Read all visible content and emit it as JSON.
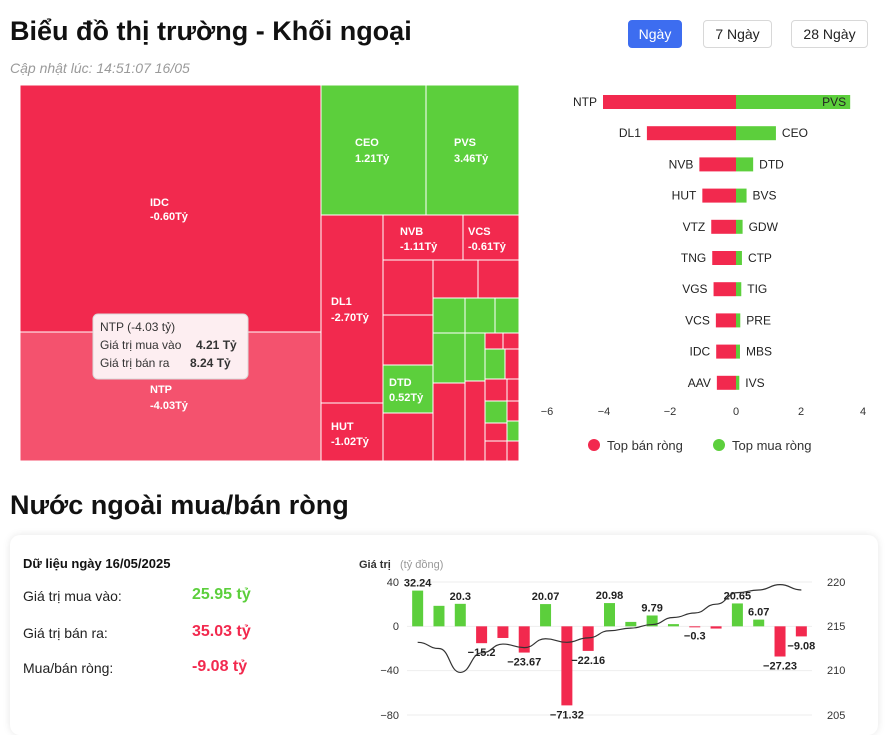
{
  "header": {
    "title": "Biểu đồ thị trường - Khối ngoại",
    "updated": "Cập nhật lúc: 14:51:07 16/05",
    "timeframes": [
      {
        "label": "Ngày",
        "active": true
      },
      {
        "label": "7 Ngày",
        "active": false
      },
      {
        "label": "28 Ngày",
        "active": false
      }
    ]
  },
  "colors": {
    "sell": "#f2294e",
    "buy": "#5ccf3c",
    "sell_light": "#f4526e",
    "accent": "#3d6df0"
  },
  "treemap": {
    "labeled_tiles": [
      {
        "ticker": "IDC",
        "value": "-0.60Tỷ",
        "side": "sell"
      },
      {
        "ticker": "NTP",
        "value": "-4.03Tỷ",
        "side": "sell",
        "highlight": true
      },
      {
        "ticker": "CEO",
        "value": "1.21Tỷ",
        "side": "buy"
      },
      {
        "ticker": "PVS",
        "value": "3.46Tỷ",
        "side": "buy"
      },
      {
        "ticker": "NVB",
        "value": "-1.11Tỷ",
        "side": "sell"
      },
      {
        "ticker": "VCS",
        "value": "-0.61Tỷ",
        "side": "sell"
      },
      {
        "ticker": "DL1",
        "value": "-2.70Tỷ",
        "side": "sell"
      },
      {
        "ticker": "DTD",
        "value": "0.52Tỷ",
        "side": "buy"
      },
      {
        "ticker": "HUT",
        "value": "-1.02Tỷ",
        "side": "sell"
      }
    ],
    "tooltip": {
      "title": "NTP (-4.03 tỷ)",
      "buy_label": "Giá trị mua vào",
      "buy_value": "4.21 Tỷ",
      "sell_label": "Giá trị bán ra",
      "sell_value": "8.24 Tỷ"
    }
  },
  "chart_data": [
    {
      "type": "bar",
      "orientation": "horizontal",
      "xlim": [
        -6,
        4
      ],
      "x_ticks": [
        "−6",
        "−4",
        "−2",
        "0",
        "2",
        "4"
      ],
      "legend_position": "bottom",
      "series": [
        {
          "name": "Top bán ròng",
          "categories": [
            "NTP",
            "DL1",
            "NVB",
            "HUT",
            "VTZ",
            "TNG",
            "VGS",
            "VCS",
            "IDC",
            "AAV"
          ],
          "values": [
            -4.03,
            -2.7,
            -1.11,
            -1.02,
            -0.75,
            -0.72,
            -0.68,
            -0.61,
            -0.6,
            -0.58
          ]
        },
        {
          "name": "Top mua ròng",
          "categories": [
            "PVS",
            "CEO",
            "DTD",
            "BVS",
            "GDW",
            "CTP",
            "TIG",
            "PRE",
            "MBS",
            "IVS"
          ],
          "values": [
            3.46,
            1.21,
            0.52,
            0.32,
            0.2,
            0.18,
            0.16,
            0.13,
            0.12,
            0.1
          ]
        }
      ]
    },
    {
      "type": "bar",
      "title": "Giá trị",
      "unit": "(tỷ đồng)",
      "ylim": [
        -80,
        40
      ],
      "y_ticks": [
        "40",
        "0",
        "−40",
        "−80"
      ],
      "y2lim": [
        205,
        220
      ],
      "y2_ticks": [
        "220",
        "215",
        "210",
        "205"
      ],
      "values": [
        32.24,
        18.5,
        20.3,
        -15.2,
        -10.5,
        -23.67,
        20.07,
        -71.32,
        -22.16,
        20.98,
        4.0,
        9.79,
        2.0,
        -0.3,
        -2.0,
        20.65,
        6.07,
        -27.23,
        -9.08
      ],
      "labels": [
        "32.24",
        "",
        "20.3",
        "−15.2",
        "",
        "−23.67",
        "20.07",
        "−71.32",
        "−22.16",
        "20.98",
        "",
        "9.79",
        "",
        "−0.3",
        "",
        "20.65",
        "6.07",
        "−27.23",
        "−9.08"
      ],
      "line": {
        "name": "index",
        "values": [
          213.2,
          212.5,
          209.8,
          212.0,
          213.0,
          212.6,
          213.6,
          213.2,
          213.7,
          214.5,
          214.8,
          215.2,
          216.0,
          216.5,
          217.5,
          218.8,
          219.1,
          219.7,
          219.1
        ]
      }
    }
  ],
  "summary": {
    "title": "Nước ngoài mua/bán ròng",
    "date": "Dữ liệu ngày 16/05/2025",
    "rows": [
      {
        "label": "Giá trị mua vào:",
        "value": "25.95 tỷ",
        "color": "#5ccf3c"
      },
      {
        "label": "Giá trị bán ra:",
        "value": "35.03 tỷ",
        "color": "#f2294e"
      },
      {
        "label": "Mua/bán ròng:",
        "value": "-9.08 tỷ",
        "color": "#f2294e"
      }
    ]
  }
}
